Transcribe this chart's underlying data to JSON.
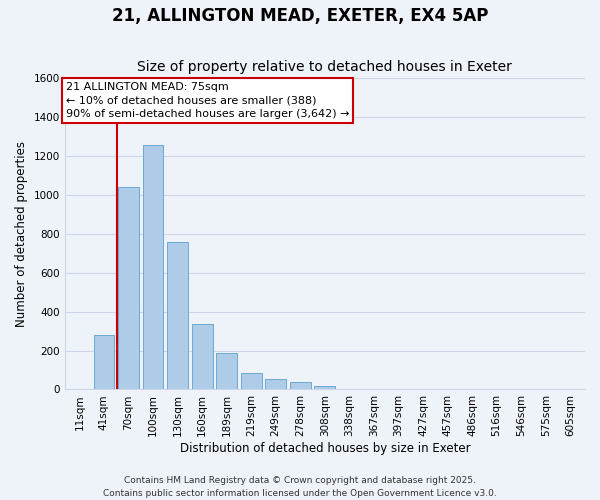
{
  "title": "21, ALLINGTON MEAD, EXETER, EX4 5AP",
  "subtitle": "Size of property relative to detached houses in Exeter",
  "xlabel": "Distribution of detached houses by size in Exeter",
  "ylabel": "Number of detached properties",
  "bar_labels": [
    "11sqm",
    "41sqm",
    "70sqm",
    "100sqm",
    "130sqm",
    "160sqm",
    "189sqm",
    "219sqm",
    "249sqm",
    "278sqm",
    "308sqm",
    "338sqm",
    "367sqm",
    "397sqm",
    "427sqm",
    "457sqm",
    "486sqm",
    "516sqm",
    "546sqm",
    "575sqm",
    "605sqm"
  ],
  "bar_values": [
    0,
    280,
    1040,
    1260,
    760,
    335,
    185,
    85,
    52,
    38,
    20,
    0,
    0,
    0,
    0,
    0,
    0,
    0,
    0,
    0,
    0
  ],
  "bar_color": "#aecce8",
  "bar_edge_color": "#6aaad4",
  "vline_x_idx": 2,
  "vline_color": "#cc0000",
  "annotation_title": "21 ALLINGTON MEAD: 75sqm",
  "annotation_line1": "← 10% of detached houses are smaller (388)",
  "annotation_line2": "90% of semi-detached houses are larger (3,642) →",
  "annotation_box_color": "#cc0000",
  "annotation_bg": "#ffffff",
  "ylim": [
    0,
    1600
  ],
  "yticks": [
    0,
    200,
    400,
    600,
    800,
    1000,
    1200,
    1400,
    1600
  ],
  "footer_line1": "Contains HM Land Registry data © Crown copyright and database right 2025.",
  "footer_line2": "Contains public sector information licensed under the Open Government Licence v3.0.",
  "bg_color": "#eef2f9",
  "grid_color": "#cdd6e8",
  "title_fontsize": 12,
  "subtitle_fontsize": 10,
  "axis_label_fontsize": 8.5,
  "tick_fontsize": 7.5,
  "annotation_fontsize": 8,
  "footer_fontsize": 6.5
}
